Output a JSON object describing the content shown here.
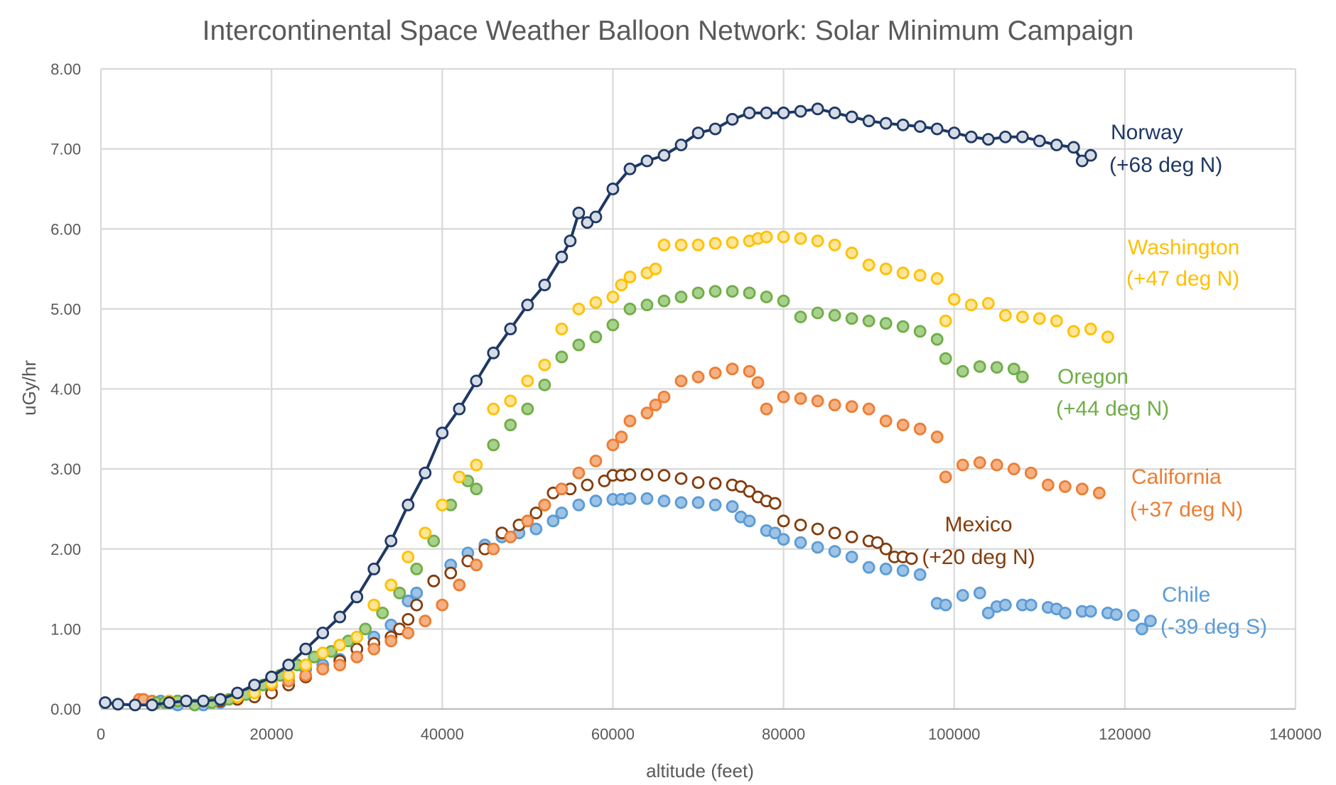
{
  "chart_data": {
    "type": "scatter",
    "title": "Intercontinental Space Weather Balloon Network: Solar Minimum Campaign",
    "xlabel": "altitude (feet)",
    "ylabel": "uGy/hr",
    "xlim": [
      0,
      140000
    ],
    "ylim": [
      0,
      8
    ],
    "x_ticks": [
      0,
      20000,
      40000,
      60000,
      80000,
      100000,
      120000,
      140000
    ],
    "x_tick_labels": [
      "0",
      "20000",
      "40000",
      "60000",
      "80000",
      "100000",
      "120000",
      "140000"
    ],
    "y_ticks": [
      0,
      1,
      2,
      3,
      4,
      5,
      6,
      7,
      8
    ],
    "y_tick_labels": [
      "0.00",
      "1.00",
      "2.00",
      "3.00",
      "4.00",
      "5.00",
      "6.00",
      "7.00",
      "8.00"
    ],
    "grid": true,
    "series": [
      {
        "name": "Chile",
        "label_line1": "Chile",
        "label_line2": "(-39  deg S)",
        "color": "#5b9bd5",
        "fill": "#9dc3e6",
        "marker": "filled",
        "line": false,
        "x": [
          7000,
          9000,
          11000,
          12000,
          14000,
          16000,
          18000,
          20000,
          22000,
          24000,
          26000,
          28000,
          30000,
          32000,
          34000,
          36000,
          37000,
          39000,
          41000,
          43000,
          45000,
          47000,
          49000,
          51000,
          53000,
          54000,
          56000,
          58000,
          60000,
          61000,
          62000,
          64000,
          66000,
          68000,
          70000,
          72000,
          74000,
          75000,
          76000,
          78000,
          79000,
          80000,
          82000,
          84000,
          86000,
          88000,
          90000,
          92000,
          94000,
          96000,
          98000,
          99000,
          101000,
          103000,
          104000,
          105000,
          106000,
          108000,
          109000,
          111000,
          112000,
          113000,
          115000,
          116000,
          118000,
          119000,
          121000,
          122000,
          123000
        ],
        "y": [
          0.1,
          0.05,
          0.05,
          0.05,
          0.08,
          0.15,
          0.2,
          0.3,
          0.4,
          0.5,
          0.55,
          0.62,
          0.75,
          0.9,
          1.05,
          1.35,
          1.45,
          1.6,
          1.8,
          1.95,
          2.05,
          2.15,
          2.2,
          2.25,
          2.35,
          2.45,
          2.55,
          2.6,
          2.62,
          2.62,
          2.63,
          2.63,
          2.6,
          2.58,
          2.58,
          2.55,
          2.53,
          2.4,
          2.35,
          2.23,
          2.2,
          2.12,
          2.08,
          2.02,
          1.97,
          1.9,
          1.77,
          1.75,
          1.73,
          1.68,
          1.32,
          1.3,
          1.42,
          1.45,
          1.2,
          1.28,
          1.3,
          1.3,
          1.3,
          1.27,
          1.25,
          1.2,
          1.22,
          1.22,
          1.2,
          1.18,
          1.17,
          1.0,
          1.1
        ]
      },
      {
        "name": "Mexico",
        "label_line1": "Mexico",
        "label_line2": "(+20 deg N)",
        "color": "#843c0c",
        "fill": "#ffffff",
        "marker": "hollow",
        "line": false,
        "x": [
          8000,
          9000,
          10000,
          12000,
          14000,
          16000,
          18000,
          20000,
          22000,
          24000,
          26000,
          28000,
          30000,
          32000,
          34000,
          35000,
          36000,
          37000,
          39000,
          41000,
          43000,
          45000,
          47000,
          49000,
          51000,
          52000,
          53000,
          55000,
          57000,
          59000,
          60000,
          61000,
          62000,
          64000,
          66000,
          68000,
          70000,
          72000,
          74000,
          75000,
          76000,
          77000,
          78000,
          79000,
          80000,
          82000,
          84000,
          86000,
          88000,
          90000,
          91000,
          92000,
          93000,
          94000,
          95000
        ],
        "y": [
          0.1,
          0.1,
          0.1,
          0.1,
          0.1,
          0.12,
          0.15,
          0.2,
          0.3,
          0.4,
          0.5,
          0.6,
          0.75,
          0.82,
          0.9,
          1.0,
          1.12,
          1.3,
          1.6,
          1.7,
          1.85,
          2.0,
          2.2,
          2.3,
          2.45,
          2.55,
          2.7,
          2.75,
          2.8,
          2.85,
          2.92,
          2.92,
          2.93,
          2.93,
          2.92,
          2.88,
          2.83,
          2.82,
          2.8,
          2.78,
          2.72,
          2.65,
          2.6,
          2.57,
          2.35,
          2.3,
          2.25,
          2.2,
          2.15,
          2.1,
          2.08,
          2.0,
          1.9,
          1.9,
          1.88
        ]
      },
      {
        "name": "California",
        "label_line1": "California",
        "label_line2": "(+37 deg N)",
        "color": "#ed7d31",
        "fill": "#f4b183",
        "marker": "filled",
        "line": false,
        "x": [
          4500,
          5000,
          6000,
          8000,
          10000,
          12000,
          14000,
          16000,
          18000,
          20000,
          22000,
          24000,
          26000,
          28000,
          30000,
          32000,
          34000,
          36000,
          38000,
          40000,
          42000,
          44000,
          46000,
          48000,
          50000,
          52000,
          54000,
          56000,
          58000,
          60000,
          61000,
          62000,
          64000,
          65000,
          66000,
          68000,
          70000,
          72000,
          74000,
          76000,
          77000,
          78000,
          80000,
          82000,
          84000,
          86000,
          88000,
          90000,
          92000,
          94000,
          96000,
          98000,
          99000,
          101000,
          103000,
          105000,
          107000,
          109000,
          111000,
          113000,
          115000,
          117000
        ],
        "y": [
          0.12,
          0.12,
          0.1,
          0.1,
          0.1,
          0.1,
          0.12,
          0.15,
          0.25,
          0.3,
          0.35,
          0.42,
          0.5,
          0.55,
          0.65,
          0.75,
          0.85,
          0.95,
          1.1,
          1.3,
          1.55,
          1.8,
          2.0,
          2.15,
          2.35,
          2.55,
          2.75,
          2.95,
          3.1,
          3.3,
          3.4,
          3.6,
          3.7,
          3.8,
          3.9,
          4.1,
          4.15,
          4.2,
          4.25,
          4.22,
          4.08,
          3.75,
          3.9,
          3.88,
          3.85,
          3.8,
          3.78,
          3.75,
          3.6,
          3.55,
          3.5,
          3.4,
          2.9,
          3.05,
          3.08,
          3.05,
          3.0,
          2.95,
          2.8,
          2.78,
          2.75,
          2.7
        ]
      },
      {
        "name": "Oregon",
        "label_line1": "Oregon",
        "label_line2": "(+44 deg N)",
        "color": "#70ad47",
        "fill": "#a9d18e",
        "marker": "filled",
        "line": false,
        "x": [
          6500,
          7500,
          9000,
          11000,
          13000,
          15000,
          17000,
          19000,
          21000,
          23000,
          25000,
          27000,
          29000,
          31000,
          33000,
          35000,
          37000,
          39000,
          41000,
          43000,
          44000,
          46000,
          48000,
          50000,
          52000,
          54000,
          56000,
          58000,
          60000,
          62000,
          64000,
          66000,
          68000,
          70000,
          72000,
          74000,
          76000,
          78000,
          80000,
          82000,
          84000,
          86000,
          88000,
          90000,
          92000,
          94000,
          96000,
          98000,
          99000,
          101000,
          103000,
          105000,
          107000,
          108000
        ],
        "y": [
          0.08,
          0.08,
          0.1,
          0.05,
          0.08,
          0.12,
          0.18,
          0.3,
          0.42,
          0.55,
          0.65,
          0.72,
          0.85,
          1.0,
          1.2,
          1.45,
          1.75,
          2.1,
          2.55,
          2.85,
          2.75,
          3.3,
          3.55,
          3.75,
          4.05,
          4.4,
          4.55,
          4.65,
          4.8,
          5.0,
          5.05,
          5.1,
          5.15,
          5.2,
          5.22,
          5.22,
          5.2,
          5.15,
          5.1,
          4.9,
          4.95,
          4.92,
          4.88,
          4.85,
          4.82,
          4.78,
          4.72,
          4.62,
          4.38,
          4.22,
          4.28,
          4.27,
          4.25,
          4.15
        ]
      },
      {
        "name": "Washington",
        "label_line1": "Washington",
        "label_line2": "(+47 deg N)",
        "color": "#ffc000",
        "fill": "#ffe699",
        "marker": "filled",
        "line": false,
        "x": [
          8000,
          10000,
          12000,
          14000,
          16000,
          18000,
          20000,
          22000,
          24000,
          26000,
          28000,
          30000,
          32000,
          34000,
          36000,
          38000,
          40000,
          42000,
          44000,
          46000,
          48000,
          50000,
          52000,
          54000,
          56000,
          58000,
          60000,
          61000,
          62000,
          64000,
          65000,
          66000,
          68000,
          70000,
          72000,
          74000,
          76000,
          77000,
          78000,
          80000,
          82000,
          84000,
          86000,
          88000,
          90000,
          92000,
          94000,
          96000,
          98000,
          99000,
          100000,
          102000,
          104000,
          106000,
          108000,
          110000,
          112000,
          114000,
          116000,
          118000
        ],
        "y": [
          0.1,
          0.1,
          0.1,
          0.12,
          0.15,
          0.2,
          0.32,
          0.42,
          0.55,
          0.7,
          0.8,
          0.9,
          1.3,
          1.55,
          1.9,
          2.2,
          2.55,
          2.9,
          3.05,
          3.75,
          3.85,
          4.1,
          4.3,
          4.75,
          5.0,
          5.08,
          5.15,
          5.3,
          5.4,
          5.45,
          5.5,
          5.8,
          5.8,
          5.8,
          5.82,
          5.83,
          5.85,
          5.88,
          5.9,
          5.9,
          5.88,
          5.85,
          5.8,
          5.7,
          5.55,
          5.5,
          5.45,
          5.42,
          5.38,
          4.85,
          5.12,
          5.05,
          5.07,
          4.92,
          4.9,
          4.88,
          4.85,
          4.72,
          4.75,
          4.65
        ]
      },
      {
        "name": "Norway",
        "label_line1": "Norway",
        "label_line2": "(+68 deg N)",
        "color": "#1f3864",
        "fill": "#d6dce5",
        "marker": "hollow",
        "line": true,
        "x": [
          500,
          2000,
          4000,
          6000,
          8000,
          10000,
          12000,
          14000,
          16000,
          18000,
          20000,
          22000,
          24000,
          26000,
          28000,
          30000,
          32000,
          34000,
          36000,
          38000,
          40000,
          42000,
          44000,
          46000,
          48000,
          50000,
          52000,
          54000,
          55000,
          56000,
          57000,
          58000,
          60000,
          62000,
          64000,
          66000,
          68000,
          70000,
          72000,
          74000,
          76000,
          78000,
          80000,
          82000,
          84000,
          86000,
          88000,
          90000,
          92000,
          94000,
          96000,
          98000,
          100000,
          102000,
          104000,
          106000,
          108000,
          110000,
          112000,
          114000,
          115000,
          116000
        ],
        "y": [
          0.08,
          0.06,
          0.05,
          0.05,
          0.08,
          0.1,
          0.1,
          0.12,
          0.2,
          0.3,
          0.4,
          0.55,
          0.75,
          0.95,
          1.15,
          1.4,
          1.75,
          2.1,
          2.55,
          2.95,
          3.45,
          3.75,
          4.1,
          4.45,
          4.75,
          5.05,
          5.3,
          5.65,
          5.85,
          6.2,
          6.08,
          6.15,
          6.5,
          6.75,
          6.85,
          6.92,
          7.05,
          7.2,
          7.25,
          7.37,
          7.45,
          7.45,
          7.45,
          7.47,
          7.5,
          7.45,
          7.4,
          7.35,
          7.32,
          7.3,
          7.28,
          7.25,
          7.2,
          7.15,
          7.12,
          7.15,
          7.15,
          7.1,
          7.05,
          7.02,
          6.85,
          6.92
        ]
      }
    ]
  }
}
